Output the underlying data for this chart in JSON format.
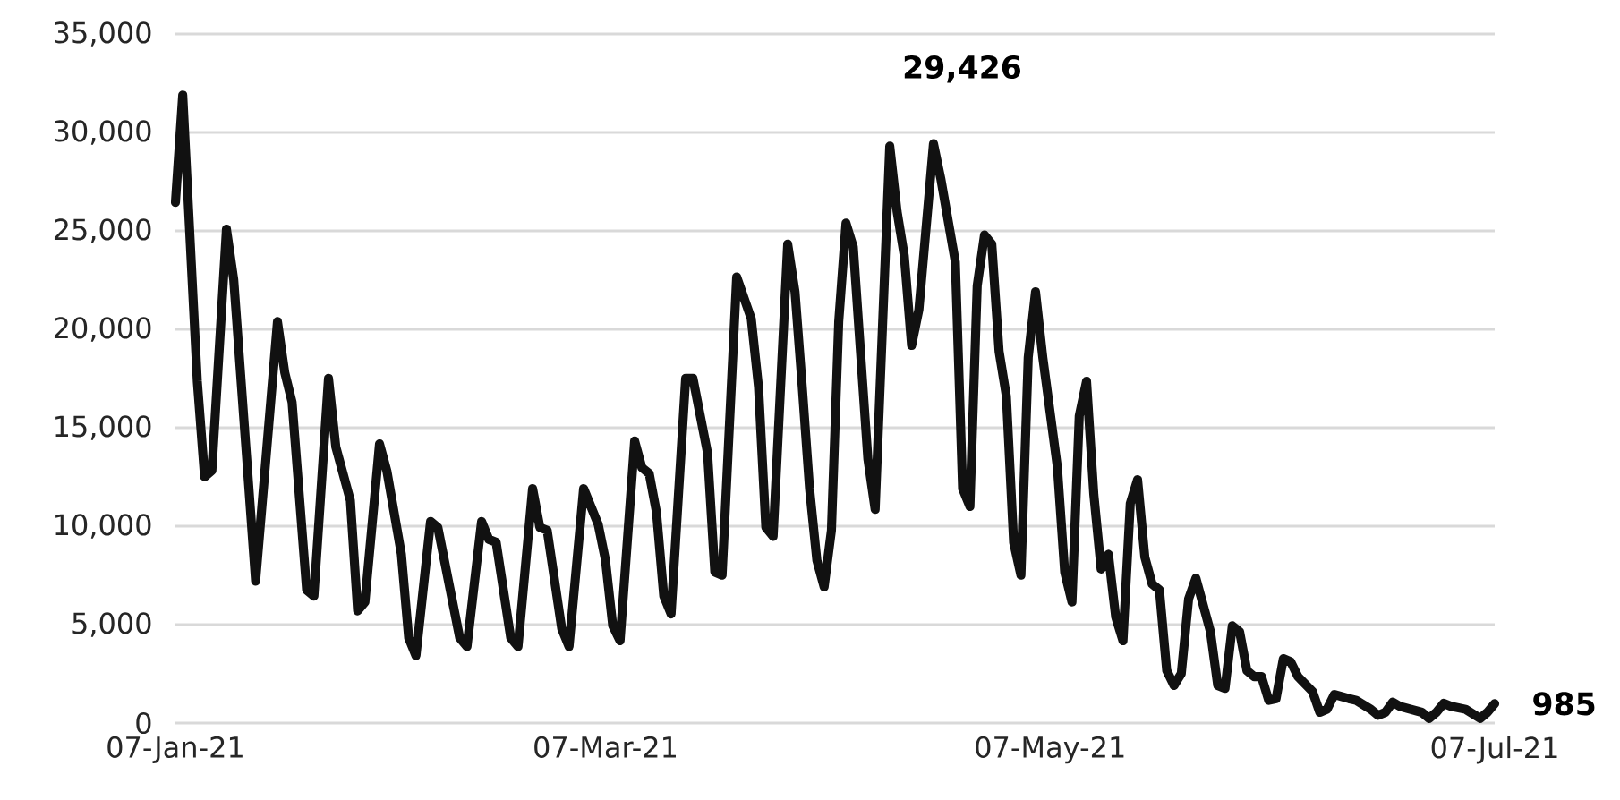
{
  "chart_data": {
    "type": "line",
    "grid": "y",
    "xlim": [
      "2021-01-07",
      "2021-07-07"
    ],
    "xticks": [
      {
        "value": "2021-01-07",
        "label": "07-Jan-21"
      },
      {
        "value": "2021-03-07",
        "label": "07-Mar-21"
      },
      {
        "value": "2021-05-07",
        "label": "07-May-21"
      },
      {
        "value": "2021-07-07",
        "label": "07-Jul-21"
      }
    ],
    "ylim": [
      0,
      35000
    ],
    "yticks": [
      {
        "value": 0,
        "label": "0"
      },
      {
        "value": 5000,
        "label": "5,000"
      },
      {
        "value": 10000,
        "label": "10,000"
      },
      {
        "value": 15000,
        "label": "15,000"
      },
      {
        "value": 20000,
        "label": "20,000"
      },
      {
        "value": 25000,
        "label": "25,000"
      },
      {
        "value": 30000,
        "label": "30,000"
      },
      {
        "value": 35000,
        "label": "35,000"
      }
    ],
    "x": [
      "2021-01-07",
      "2021-01-08",
      "2021-01-10",
      "2021-01-11",
      "2021-01-12",
      "2021-01-14",
      "2021-01-15",
      "2021-01-18",
      "2021-01-21",
      "2021-01-22",
      "2021-01-23",
      "2021-01-25",
      "2021-01-26",
      "2021-01-28",
      "2021-01-29",
      "2021-01-31",
      "2021-02-01",
      "2021-02-02",
      "2021-02-04",
      "2021-02-05",
      "2021-02-07",
      "2021-02-08",
      "2021-02-09",
      "2021-02-11",
      "2021-02-12",
      "2021-02-15",
      "2021-02-16",
      "2021-02-18",
      "2021-02-19",
      "2021-02-20",
      "2021-02-22",
      "2021-02-23",
      "2021-02-25",
      "2021-02-26",
      "2021-02-27",
      "2021-03-01",
      "2021-03-02",
      "2021-03-04",
      "2021-03-06",
      "2021-03-07",
      "2021-03-08",
      "2021-03-09",
      "2021-03-11",
      "2021-03-12",
      "2021-03-13",
      "2021-03-14",
      "2021-03-15",
      "2021-03-16",
      "2021-03-18",
      "2021-03-19",
      "2021-03-21",
      "2021-03-22",
      "2021-03-23",
      "2021-03-25",
      "2021-03-27",
      "2021-03-28",
      "2021-03-29",
      "2021-03-30",
      "2021-04-01",
      "2021-04-02",
      "2021-04-03",
      "2021-04-04",
      "2021-04-05",
      "2021-04-06",
      "2021-04-07",
      "2021-04-08",
      "2021-04-09",
      "2021-04-10",
      "2021-04-12",
      "2021-04-13",
      "2021-04-15",
      "2021-04-16",
      "2021-04-17",
      "2021-04-18",
      "2021-04-19",
      "2021-04-21",
      "2021-04-22",
      "2021-04-24",
      "2021-04-25",
      "2021-04-26",
      "2021-04-27",
      "2021-04-28",
      "2021-04-29",
      "2021-04-30",
      "2021-05-01",
      "2021-05-02",
      "2021-05-03",
      "2021-05-04",
      "2021-05-05",
      "2021-05-06",
      "2021-05-08",
      "2021-05-09",
      "2021-05-10",
      "2021-05-11",
      "2021-05-12",
      "2021-05-13",
      "2021-05-14",
      "2021-05-15",
      "2021-05-16",
      "2021-05-17",
      "2021-05-18",
      "2021-05-19",
      "2021-05-20",
      "2021-05-21",
      "2021-05-22",
      "2021-05-23",
      "2021-05-24",
      "2021-05-25",
      "2021-05-26",
      "2021-05-27",
      "2021-05-29",
      "2021-05-30",
      "2021-05-31",
      "2021-06-01",
      "2021-06-02",
      "2021-06-03",
      "2021-06-04",
      "2021-06-05",
      "2021-06-06",
      "2021-06-07",
      "2021-06-08",
      "2021-06-09",
      "2021-06-10",
      "2021-06-12",
      "2021-06-13",
      "2021-06-14",
      "2021-06-15",
      "2021-06-17",
      "2021-06-18",
      "2021-06-20",
      "2021-06-21",
      "2021-06-22",
      "2021-06-23",
      "2021-06-24",
      "2021-06-27",
      "2021-06-28",
      "2021-06-29",
      "2021-06-30",
      "2021-07-01",
      "2021-07-03",
      "2021-07-05",
      "2021-07-06",
      "2021-07-07"
    ],
    "series": [
      {
        "color": "#111111",
        "values": [
          26450,
          31900,
          17360,
          12510,
          12820,
          25090,
          22510,
          7210,
          20390,
          17800,
          16300,
          6760,
          6450,
          17510,
          14030,
          11300,
          5700,
          6150,
          14180,
          12820,
          8570,
          4330,
          3420,
          10240,
          9940,
          4330,
          3880,
          10240,
          9330,
          9180,
          4330,
          3880,
          11910,
          9940,
          9790,
          4790,
          3880,
          11910,
          10090,
          8270,
          4940,
          4180,
          14330,
          12970,
          12670,
          10700,
          6450,
          5540,
          17510,
          17510,
          13730,
          7670,
          7510,
          22660,
          20540,
          17060,
          9940,
          9480,
          24330,
          21910,
          17060,
          11910,
          8270,
          6910,
          9790,
          20390,
          25390,
          24180,
          13420,
          10850,
          29300,
          26000,
          23720,
          19180,
          21000,
          29426,
          27660,
          23420,
          11910,
          11000,
          22210,
          24790,
          24330,
          18880,
          16600,
          9180,
          7510,
          18570,
          21910,
          18570,
          13000,
          7670,
          6150,
          15600,
          17360,
          11600,
          7820,
          8570,
          5390,
          4180,
          11150,
          12360,
          8420,
          7060,
          6760,
          2670,
          1910,
          2510,
          6300,
          7360,
          4640,
          1910,
          1760,
          4940,
          4640,
          2670,
          2360,
          2360,
          1150,
          1240,
          3270,
          3120,
          2360,
          1600,
          545,
          700,
          1450,
          1240,
          1150,
          700,
          390,
          545,
          1060,
          850,
          545,
          240,
          545,
          1000,
          850,
          700,
          240,
          545,
          985
        ]
      }
    ],
    "annotations": [
      {
        "text": "29,426",
        "x": "2021-04-21",
        "y": 29426
      },
      {
        "text": "985",
        "x": "2021-07-07",
        "y": 985
      }
    ]
  }
}
